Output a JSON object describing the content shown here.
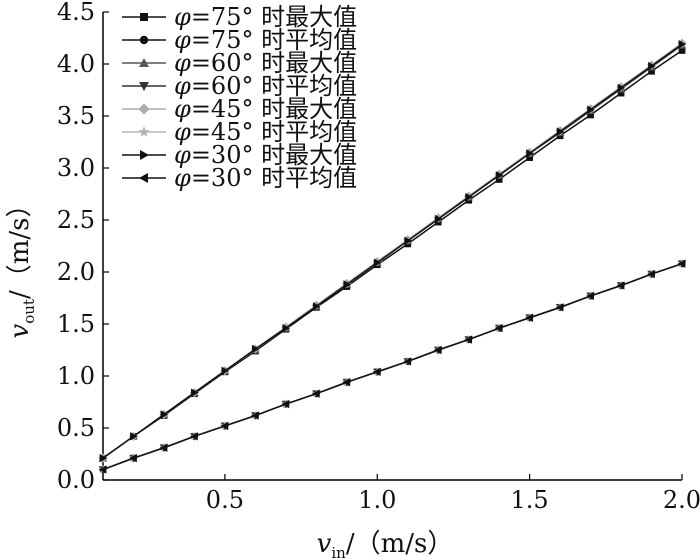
{
  "chart_data": {
    "type": "line",
    "xlabel": "v_in/（m/s）",
    "ylabel": "v_out/（m/s）",
    "xlim": [
      0.1,
      2.0
    ],
    "ylim": [
      0.0,
      4.5
    ],
    "x_ticks": [
      "0.5",
      "1.0",
      "1.5",
      "2.0"
    ],
    "y_ticks": [
      "0.0",
      "0.5",
      "1.0",
      "1.5",
      "2.0",
      "2.5",
      "3.0",
      "3.5",
      "4.0",
      "4.5"
    ],
    "x": [
      0.1,
      0.2,
      0.3,
      0.4,
      0.5,
      0.6,
      0.7,
      0.8,
      0.9,
      1.0,
      1.1,
      1.2,
      1.3,
      1.4,
      1.5,
      1.6,
      1.7,
      1.8,
      1.9,
      2.0
    ],
    "legend_position": "top-left",
    "grid": false,
    "series": [
      {
        "name": "φ=75° 时最大值",
        "marker": "square",
        "color": "#111111",
        "values": [
          0.21,
          0.42,
          0.62,
          0.83,
          1.04,
          1.24,
          1.45,
          1.66,
          1.86,
          2.07,
          2.27,
          2.48,
          2.69,
          2.89,
          3.1,
          3.31,
          3.51,
          3.72,
          3.93,
          4.13
        ]
      },
      {
        "name": "φ=75° 时平均值",
        "marker": "circle",
        "color": "#111111",
        "values": [
          0.1,
          0.21,
          0.31,
          0.42,
          0.52,
          0.62,
          0.73,
          0.83,
          0.94,
          1.04,
          1.14,
          1.25,
          1.35,
          1.46,
          1.56,
          1.66,
          1.77,
          1.87,
          1.98,
          2.08
        ]
      },
      {
        "name": "φ=60° 时最大值",
        "marker": "triangle-up",
        "color": "#555555",
        "values": [
          0.21,
          0.42,
          0.63,
          0.84,
          1.05,
          1.25,
          1.46,
          1.67,
          1.88,
          2.09,
          2.3,
          2.51,
          2.72,
          2.93,
          3.14,
          3.34,
          3.55,
          3.76,
          3.97,
          4.18
        ]
      },
      {
        "name": "φ=60° 时平均值",
        "marker": "triangle-down",
        "color": "#333333",
        "values": [
          0.1,
          0.21,
          0.31,
          0.42,
          0.52,
          0.62,
          0.73,
          0.83,
          0.94,
          1.04,
          1.14,
          1.25,
          1.35,
          1.46,
          1.56,
          1.66,
          1.77,
          1.87,
          1.98,
          2.08
        ]
      },
      {
        "name": "φ=45° 时最大值",
        "marker": "diamond",
        "color": "#aaaaaa",
        "values": [
          0.21,
          0.42,
          0.63,
          0.84,
          1.05,
          1.26,
          1.47,
          1.68,
          1.89,
          2.1,
          2.31,
          2.52,
          2.73,
          2.94,
          3.15,
          3.36,
          3.57,
          3.78,
          3.99,
          4.2
        ]
      },
      {
        "name": "φ=45° 时平均值",
        "marker": "star",
        "color": "#b5b5b5",
        "values": [
          0.1,
          0.21,
          0.31,
          0.42,
          0.52,
          0.62,
          0.73,
          0.83,
          0.94,
          1.04,
          1.14,
          1.25,
          1.35,
          1.46,
          1.56,
          1.66,
          1.77,
          1.87,
          1.98,
          2.08
        ]
      },
      {
        "name": "φ=30° 时最大值",
        "marker": "triangle-right",
        "color": "#111111",
        "values": [
          0.21,
          0.42,
          0.63,
          0.84,
          1.05,
          1.26,
          1.46,
          1.67,
          1.88,
          2.09,
          2.3,
          2.51,
          2.72,
          2.93,
          3.14,
          3.35,
          3.56,
          3.77,
          3.98,
          4.19
        ]
      },
      {
        "name": "φ=30° 时平均值",
        "marker": "triangle-left",
        "color": "#111111",
        "values": [
          0.1,
          0.21,
          0.31,
          0.42,
          0.52,
          0.62,
          0.73,
          0.83,
          0.94,
          1.04,
          1.14,
          1.25,
          1.35,
          1.46,
          1.56,
          1.66,
          1.77,
          1.87,
          1.98,
          2.08
        ]
      }
    ]
  }
}
